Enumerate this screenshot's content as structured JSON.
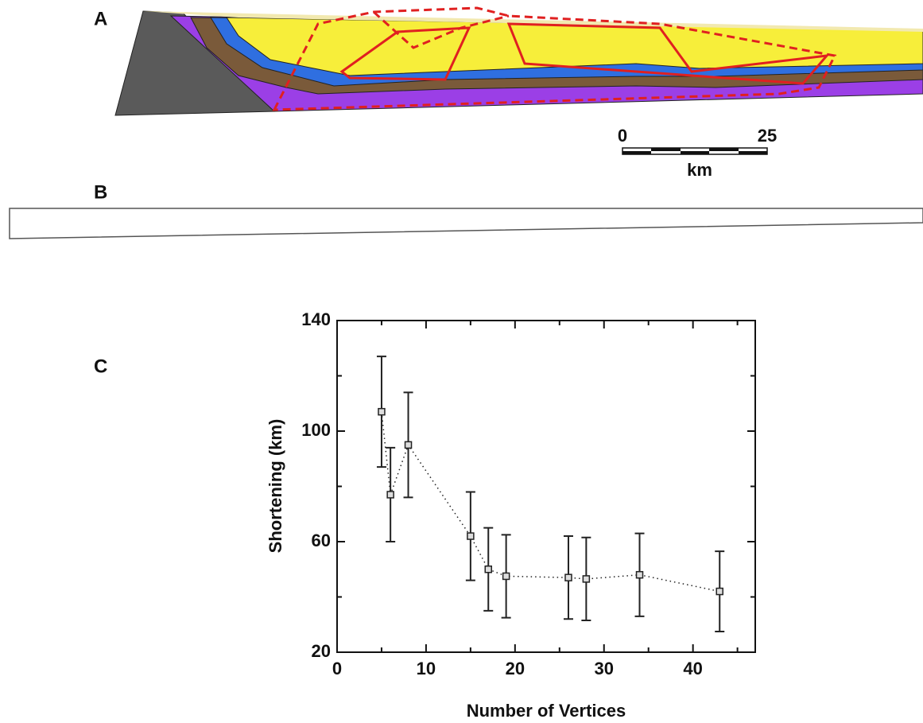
{
  "panels": {
    "labels": [
      "A",
      "B",
      "C"
    ],
    "scale_bar": {
      "ticks": [
        0,
        25
      ],
      "unit": "km"
    }
  },
  "chart_data": {
    "type": "scatter",
    "x_label": "Number of Vertices",
    "y_label": "Shortening (km)",
    "x": [
      5,
      6,
      8,
      15,
      17,
      19,
      26,
      28,
      34,
      43
    ],
    "values": [
      107,
      77,
      95,
      62,
      50,
      47.5,
      47,
      46.5,
      48,
      42
    ],
    "errors": [
      20,
      17,
      19,
      16,
      15,
      15,
      15,
      15,
      15,
      14.5
    ],
    "color": "#222222",
    "xlim": [
      0,
      47
    ],
    "xticks": [
      0,
      10,
      20,
      30,
      40
    ],
    "xminorticks": [
      5,
      15,
      25,
      35,
      45
    ],
    "ylim": [
      20,
      140
    ],
    "yticks": [
      20,
      60,
      100,
      140
    ],
    "yminorticks": [
      40,
      80,
      120
    ]
  }
}
